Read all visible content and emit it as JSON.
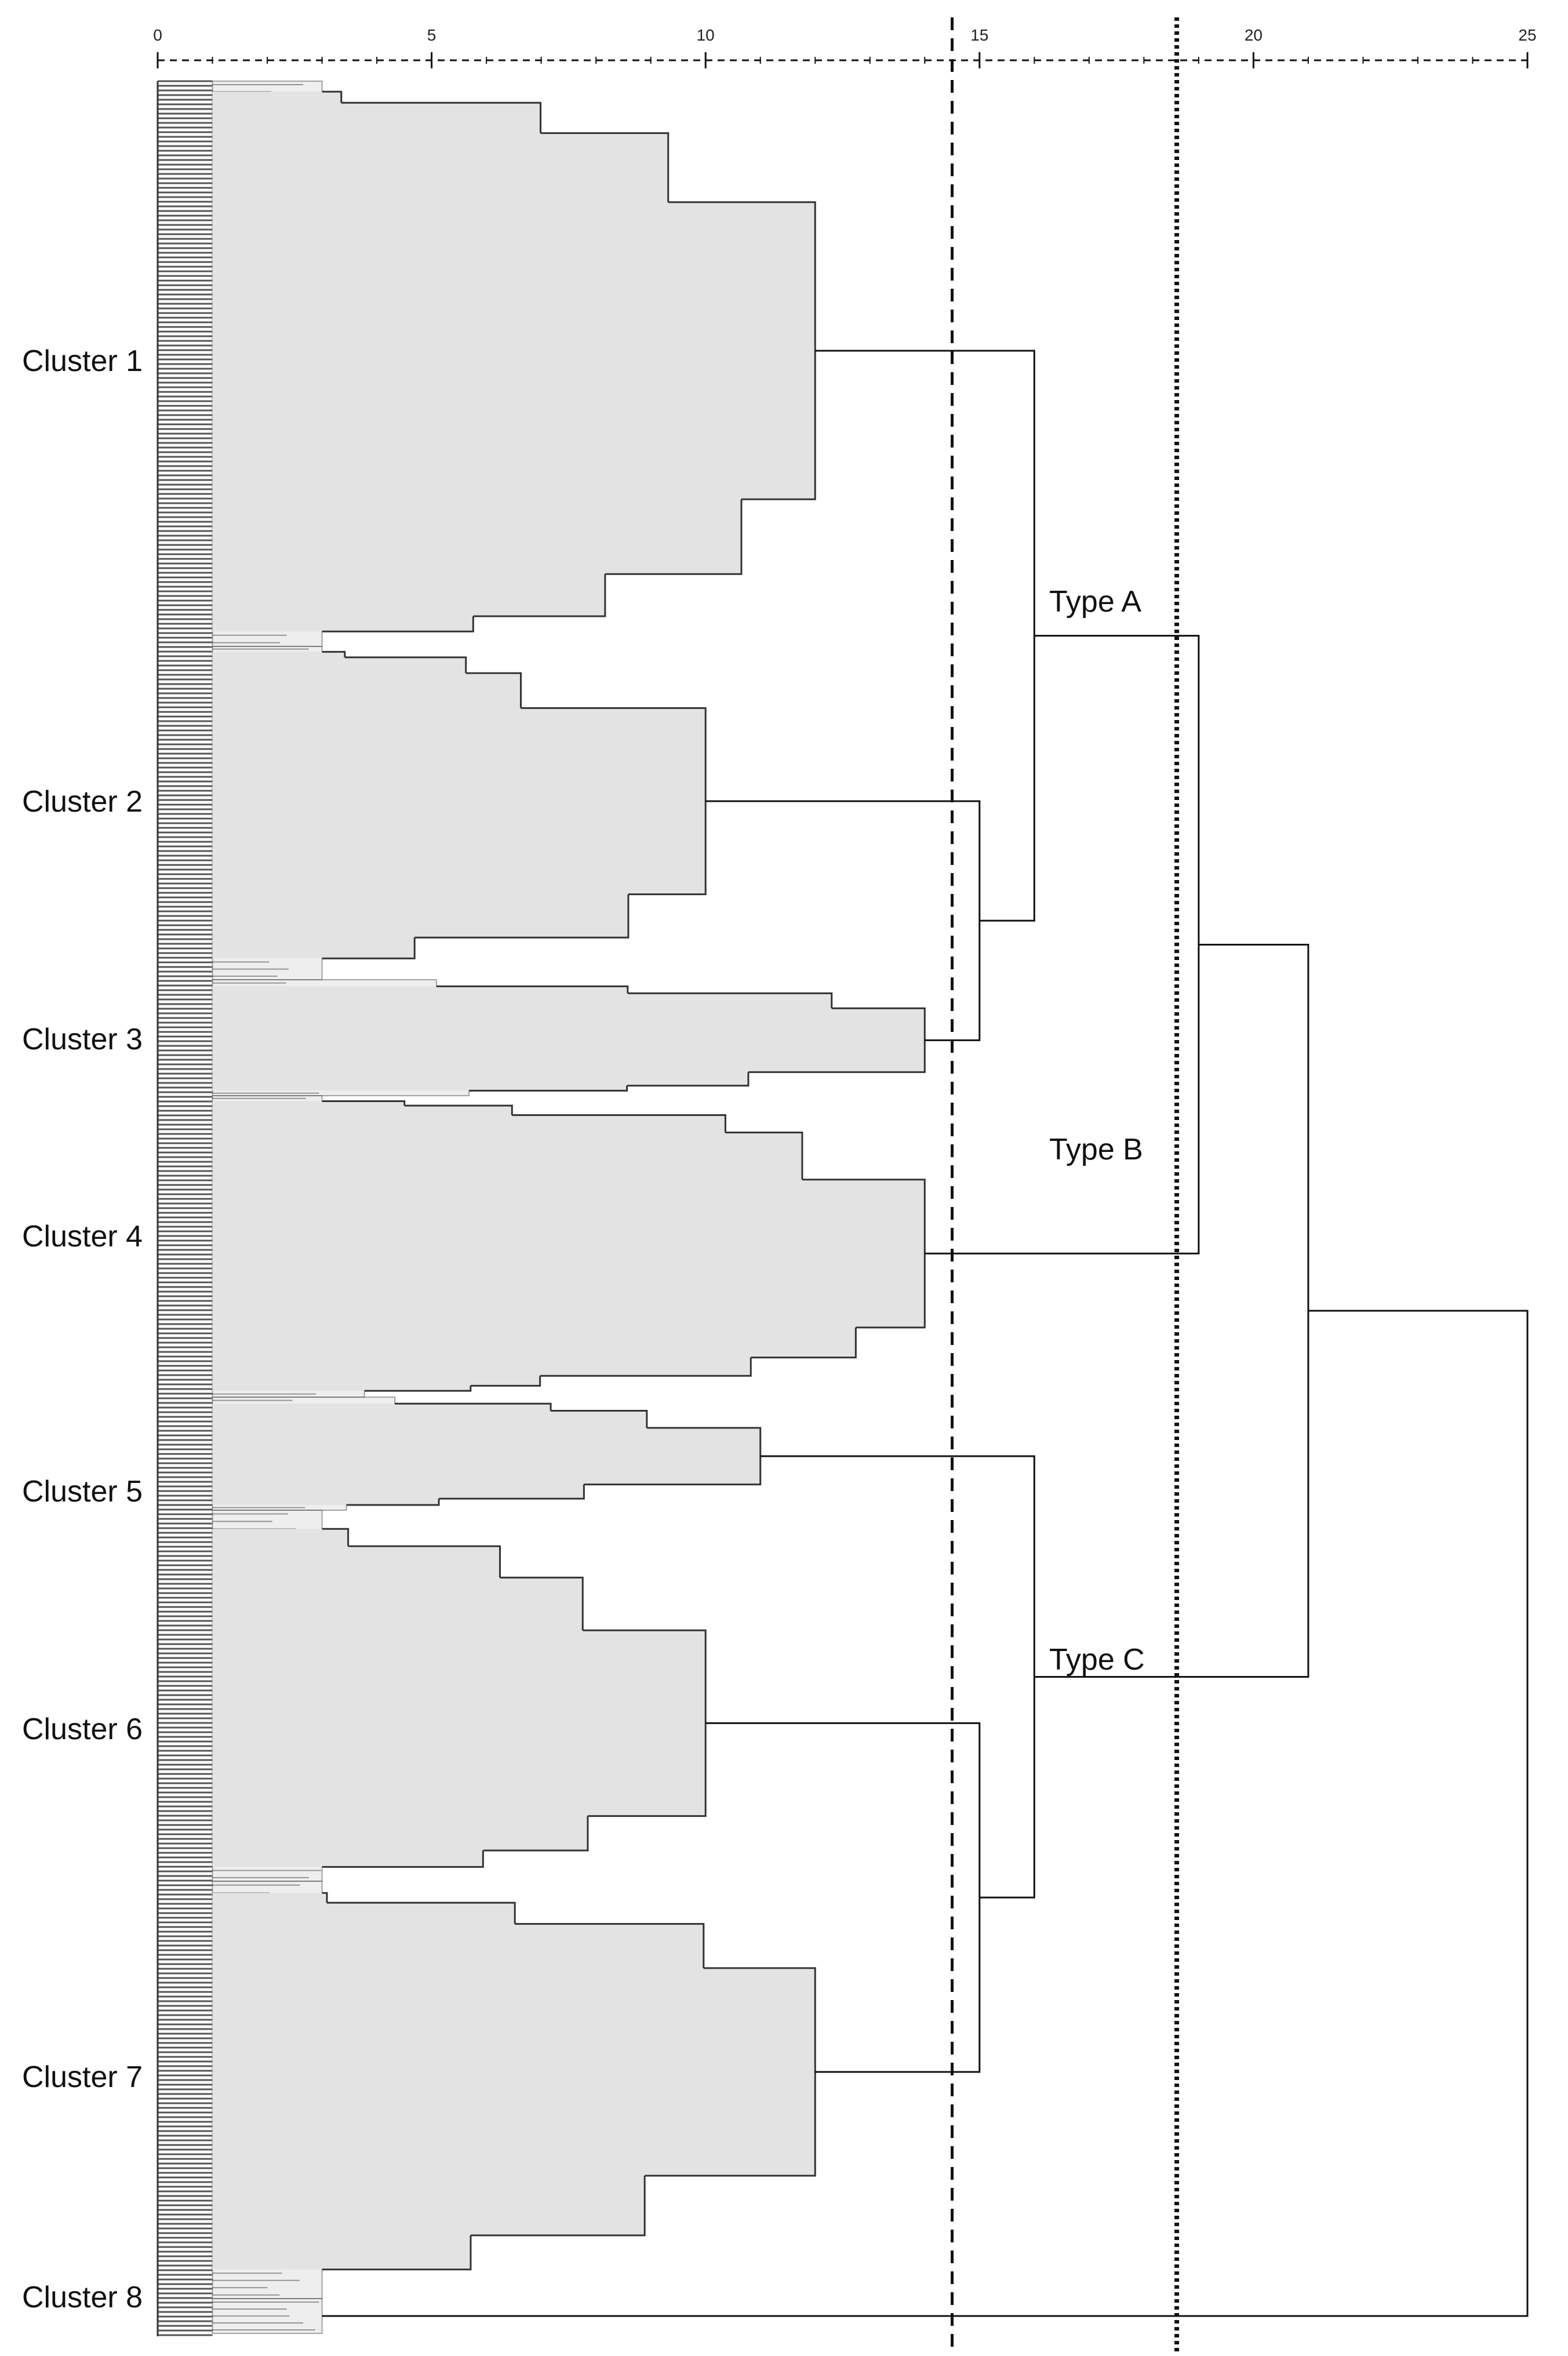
{
  "chart_data": {
    "type": "dendrogram",
    "orientation": "horizontal",
    "x_axis": {
      "range": [
        0,
        25
      ],
      "ticks": [
        0,
        5,
        10,
        15,
        20,
        25
      ],
      "tick_labels": [
        "0",
        "5",
        "10",
        "15",
        "20",
        "25"
      ],
      "label": ""
    },
    "clusters": [
      {
        "name": "Cluster 1",
        "label": "Cluster 1",
        "merge_height": 12
      },
      {
        "name": "Cluster 2",
        "label": "Cluster 2",
        "merge_height": 10
      },
      {
        "name": "Cluster 3",
        "label": "Cluster 3",
        "merge_height": 14
      },
      {
        "name": "Cluster 4",
        "label": "Cluster 4",
        "merge_height": 14
      },
      {
        "name": "Cluster 5",
        "label": "Cluster 5",
        "merge_height": 11
      },
      {
        "name": "Cluster 6",
        "label": "Cluster 6",
        "merge_height": 10
      },
      {
        "name": "Cluster 7",
        "label": "Cluster 7",
        "merge_height": 12
      },
      {
        "name": "Cluster 8",
        "label": "Cluster 8",
        "merge_height": 3
      }
    ],
    "merges": [
      {
        "children": [
          "Cluster 2",
          "Cluster 3"
        ],
        "height": 15
      },
      {
        "children": [
          "Cluster 1",
          "Cluster 2+3"
        ],
        "height": 16,
        "group": "Type A"
      },
      {
        "children": [
          "Type A",
          "Cluster 4"
        ],
        "height": 19
      },
      {
        "children": [
          "Cluster 6",
          "Cluster 7"
        ],
        "height": 15
      },
      {
        "children": [
          "Cluster 5",
          "Cluster 6+7"
        ],
        "height": 16,
        "group": "Type C"
      },
      {
        "children": [
          "Type A+B",
          "Type C"
        ],
        "height": 21
      },
      {
        "children": [
          "All",
          "Cluster 8"
        ],
        "height": 25
      }
    ],
    "groups": [
      {
        "name": "Type A",
        "label": "Type A"
      },
      {
        "name": "Type B",
        "label": "Type B"
      },
      {
        "name": "Type C",
        "label": "Type C"
      }
    ],
    "cutoff_lines": [
      {
        "x": 14.5,
        "style": "dashed"
      },
      {
        "x": 18.6,
        "style": "dotted"
      }
    ],
    "colors": {
      "fill": "#e3e3e3",
      "line": "#111111",
      "leaf": "#555555"
    }
  }
}
